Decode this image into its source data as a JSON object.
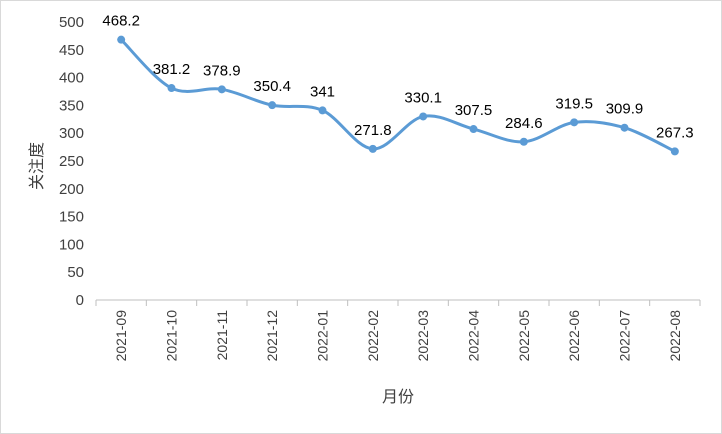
{
  "chart_data": {
    "type": "line",
    "smooth": true,
    "xlabel": "月份",
    "ylabel": "关注度",
    "ylim": [
      0,
      500
    ],
    "yticks": [
      "0",
      "50",
      "100",
      "150",
      "200",
      "250",
      "300",
      "350",
      "400",
      "450",
      "500"
    ],
    "grid": false,
    "legend": "none",
    "line_color": "#5b9bd5",
    "categories": [
      "2021-09",
      "2021-10",
      "2021-11",
      "2021-12",
      "2022-01",
      "2022-02",
      "2022-03",
      "2022-04",
      "2022-05",
      "2022-06",
      "2022-07",
      "2022-08"
    ],
    "values": [
      468.2,
      381.2,
      378.9,
      350.4,
      341,
      271.8,
      330.1,
      307.5,
      284.6,
      319.5,
      309.9,
      267.3
    ],
    "data_labels": [
      "468.2",
      "381.2",
      "378.9",
      "350.4",
      "341",
      "271.8",
      "330.1",
      "307.5",
      "284.6",
      "319.5",
      "309.9",
      "267.3"
    ]
  }
}
